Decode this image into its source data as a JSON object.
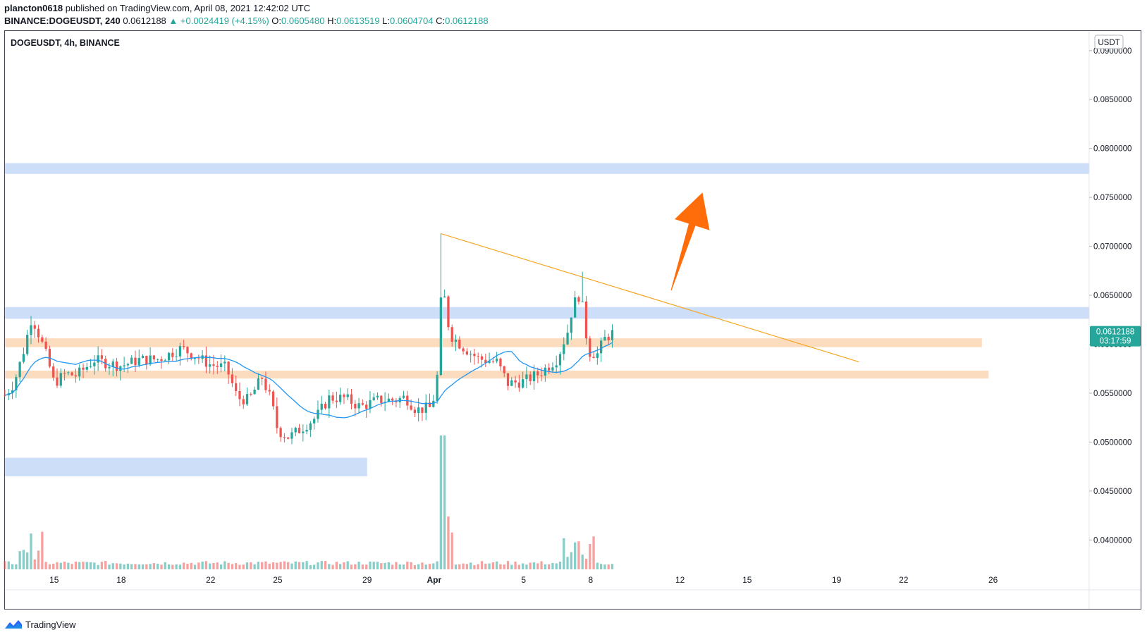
{
  "header": {
    "author": "plancton0618",
    "published_text": "published on TradingView.com, April 08, 2021 12:42:02 UTC",
    "symbol_full": "BINANCE:DOGEUSDT, 240",
    "last": "0.0612188",
    "change": "▲ +0.0024419 (+4.15%)",
    "o_label": "O:",
    "o_value": "0.0605480",
    "h_label": "H:",
    "h_value": "0.0613519",
    "l_label": "L:",
    "l_value": "0.0604704",
    "c_label": "C:",
    "c_value": "0.0612188"
  },
  "footer": {
    "brand": "TradingView"
  },
  "colors": {
    "up": "#26a69a",
    "down": "#ef5350",
    "ma": "#2196f3",
    "resistance_zone": "#bcd3f5",
    "support_zone": "#fbd3ae",
    "trendline": "#f5a623",
    "arrow": "#ff6d0a",
    "price_label": "#26a69a"
  },
  "chart_data": {
    "type": "candlestick",
    "symbol_label": "DOGEUSDT, 4h, BINANCE",
    "currency": "USDT",
    "ylim": [
      0.037,
      0.092
    ],
    "y_ticks": [
      "0.0900000",
      "0.0850000",
      "0.0800000",
      "0.0750000",
      "0.0700000",
      "0.0650000",
      "0.0600000",
      "0.0550000",
      "0.0500000",
      "0.0450000",
      "0.0400000"
    ],
    "x_ticks": [
      {
        "label": "15",
        "day": 15
      },
      {
        "label": "18",
        "day": 18
      },
      {
        "label": "22",
        "day": 22
      },
      {
        "label": "25",
        "day": 25
      },
      {
        "label": "29",
        "day": 29
      },
      {
        "label": "Apr",
        "day": 32,
        "bold": true
      },
      {
        "label": "5",
        "day": 36
      },
      {
        "label": "8",
        "day": 39
      },
      {
        "label": "12",
        "day": 43
      },
      {
        "label": "15",
        "day": 46
      },
      {
        "label": "19",
        "day": 50
      },
      {
        "label": "22",
        "day": 53
      },
      {
        "label": "26",
        "day": 57
      }
    ],
    "x_range_days": [
      12.8,
      61.3
    ],
    "last_price": {
      "value": 0.0612188,
      "label": "0.0612188",
      "countdown": "03:17:59"
    },
    "zones": [
      {
        "kind": "resistance",
        "from": 0.0774,
        "to": 0.0785,
        "x0": 12.8,
        "x1": 61.3
      },
      {
        "kind": "resistance",
        "from": 0.0626,
        "to": 0.0638,
        "x0": 12.8,
        "x1": 61.3
      },
      {
        "kind": "support",
        "from": 0.0597,
        "to": 0.0606,
        "x0": 12.8,
        "x1": 56.5
      },
      {
        "kind": "support",
        "from": 0.0565,
        "to": 0.0573,
        "x0": 12.8,
        "x1": 56.8
      },
      {
        "kind": "resistance",
        "from": 0.0465,
        "to": 0.0484,
        "x0": 12.8,
        "x1": 29.0
      }
    ],
    "trendline": [
      {
        "day": 32.3,
        "price": 0.0713
      },
      {
        "day": 51.0,
        "price": 0.0582
      }
    ],
    "arrow": {
      "from": {
        "day": 42.6,
        "price": 0.0655
      },
      "to": {
        "day": 44.0,
        "price": 0.0755
      }
    },
    "anchors": [
      {
        "day": 12.8,
        "price": 0.0548
      },
      {
        "day": 13.2,
        "price": 0.056
      },
      {
        "day": 13.6,
        "price": 0.059
      },
      {
        "day": 14.0,
        "price": 0.0628
      },
      {
        "day": 14.4,
        "price": 0.0605
      },
      {
        "day": 14.7,
        "price": 0.0585
      },
      {
        "day": 15.0,
        "price": 0.056
      },
      {
        "day": 15.5,
        "price": 0.057
      },
      {
        "day": 16.0,
        "price": 0.0568
      },
      {
        "day": 16.8,
        "price": 0.0584
      },
      {
        "day": 17.5,
        "price": 0.058
      },
      {
        "day": 18.0,
        "price": 0.0578
      },
      {
        "day": 18.8,
        "price": 0.0584
      },
      {
        "day": 19.7,
        "price": 0.0585
      },
      {
        "day": 20.7,
        "price": 0.0596
      },
      {
        "day": 21.3,
        "price": 0.0588
      },
      {
        "day": 22.0,
        "price": 0.0579
      },
      {
        "day": 22.7,
        "price": 0.0576
      },
      {
        "day": 23.2,
        "price": 0.0545
      },
      {
        "day": 23.7,
        "price": 0.0543
      },
      {
        "day": 24.3,
        "price": 0.0566
      },
      {
        "day": 24.7,
        "price": 0.0543
      },
      {
        "day": 25.0,
        "price": 0.0512
      },
      {
        "day": 25.5,
        "price": 0.0505
      },
      {
        "day": 26.0,
        "price": 0.0513
      },
      {
        "day": 26.7,
        "price": 0.0525
      },
      {
        "day": 27.3,
        "price": 0.0545
      },
      {
        "day": 28.0,
        "price": 0.0545
      },
      {
        "day": 28.7,
        "price": 0.0536
      },
      {
        "day": 29.5,
        "price": 0.0543
      },
      {
        "day": 30.3,
        "price": 0.0543
      },
      {
        "day": 30.7,
        "price": 0.0546
      },
      {
        "day": 31.2,
        "price": 0.0533
      },
      {
        "day": 31.8,
        "price": 0.0535
      },
      {
        "day": 32.1,
        "price": 0.0552
      },
      {
        "day": 32.35,
        "price": 0.0665
      },
      {
        "day": 32.7,
        "price": 0.061
      },
      {
        "day": 33.3,
        "price": 0.0597
      },
      {
        "day": 34.0,
        "price": 0.0585
      },
      {
        "day": 34.8,
        "price": 0.0582
      },
      {
        "day": 35.3,
        "price": 0.056
      },
      {
        "day": 36.0,
        "price": 0.0562
      },
      {
        "day": 36.7,
        "price": 0.057
      },
      {
        "day": 37.5,
        "price": 0.0585
      },
      {
        "day": 38.0,
        "price": 0.0615
      },
      {
        "day": 38.2,
        "price": 0.064
      },
      {
        "day": 38.55,
        "price": 0.0652
      },
      {
        "day": 38.9,
        "price": 0.0592
      },
      {
        "day": 39.3,
        "price": 0.059
      },
      {
        "day": 39.6,
        "price": 0.0605
      },
      {
        "day": 40.0,
        "price": 0.0612
      }
    ]
  }
}
